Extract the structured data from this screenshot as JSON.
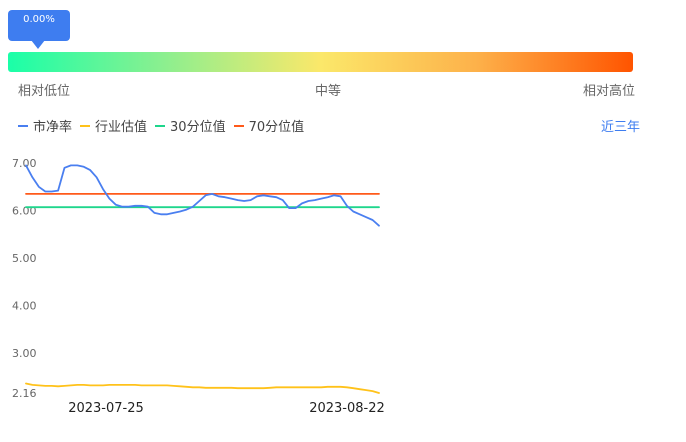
{
  "gauge": {
    "percentile_label": "0.00%",
    "percentile_value": 0.0,
    "low_label": "相对低位",
    "mid_label": "中等",
    "high_label": "相对高位"
  },
  "legend": [
    {
      "label": "市净率",
      "color": "#4a7ff0"
    },
    {
      "label": "行业估值",
      "color": "#ffc21a"
    },
    {
      "label": "30分位值",
      "color": "#1ed68c"
    },
    {
      "label": "70分位值",
      "color": "#ff5a1a"
    }
  ],
  "period_label": "近三年",
  "chart_data": {
    "type": "line",
    "y_ticks": [
      "7.00",
      "6.00",
      "5.00",
      "4.00",
      "3.00",
      "2.16"
    ],
    "y_tick_values": [
      7.0,
      6.0,
      5.0,
      4.0,
      3.0,
      2.16
    ],
    "ylim": [
      2.16,
      7.0
    ],
    "x_tick_labels": [
      "2023-07-25",
      "2023-08-22"
    ],
    "series": [
      {
        "name": "市净率",
        "color": "#4a7ff0",
        "values": [
          6.95,
          6.7,
          6.5,
          6.4,
          6.4,
          6.42,
          6.9,
          6.95,
          6.95,
          6.92,
          6.85,
          6.7,
          6.45,
          6.25,
          6.12,
          6.08,
          6.08,
          6.1,
          6.1,
          6.08,
          5.95,
          5.92,
          5.92,
          5.95,
          5.98,
          6.02,
          6.08,
          6.2,
          6.32,
          6.35,
          6.3,
          6.28,
          6.25,
          6.22,
          6.2,
          6.22,
          6.3,
          6.32,
          6.3,
          6.28,
          6.22,
          6.05,
          6.05,
          6.15,
          6.2,
          6.22,
          6.25,
          6.28,
          6.32,
          6.3,
          6.1,
          5.98,
          5.92,
          5.86,
          5.8,
          5.68
        ]
      },
      {
        "name": "行业估值",
        "color": "#ffc21a",
        "values": [
          2.36,
          2.33,
          2.32,
          2.31,
          2.31,
          2.3,
          2.31,
          2.32,
          2.33,
          2.33,
          2.32,
          2.32,
          2.32,
          2.33,
          2.33,
          2.33,
          2.33,
          2.33,
          2.32,
          2.32,
          2.32,
          2.32,
          2.32,
          2.31,
          2.3,
          2.29,
          2.28,
          2.28,
          2.27,
          2.27,
          2.27,
          2.27,
          2.27,
          2.26,
          2.26,
          2.26,
          2.26,
          2.26,
          2.27,
          2.28,
          2.28,
          2.28,
          2.28,
          2.28,
          2.28,
          2.28,
          2.28,
          2.29,
          2.29,
          2.29,
          2.28,
          2.26,
          2.24,
          2.22,
          2.2,
          2.16
        ]
      },
      {
        "name": "30分位值",
        "color": "#1ed68c",
        "values": [
          6.07,
          6.07
        ]
      },
      {
        "name": "70分位值",
        "color": "#ff5a1a",
        "values": [
          6.35,
          6.35
        ]
      }
    ]
  }
}
